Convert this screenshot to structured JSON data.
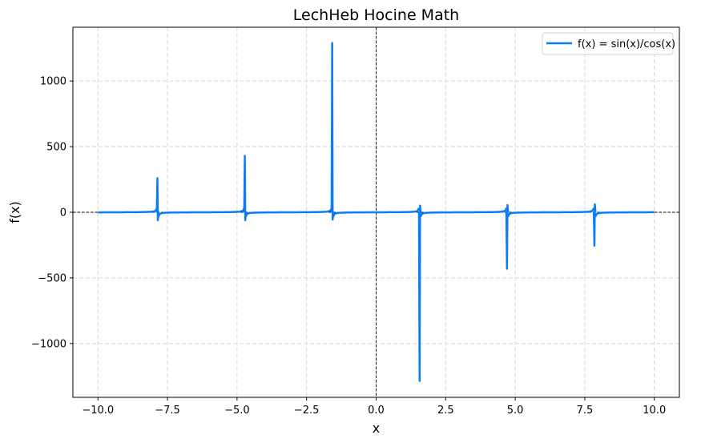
{
  "chart_data": {
    "type": "line",
    "title": "LechHeb Hocine Math",
    "xlabel": "x",
    "ylabel": "f(x)",
    "xlim": [
      -10.9,
      10.9
    ],
    "ylim": [
      -1410,
      1410
    ],
    "x_ticks": [
      -10.0,
      -7.5,
      -5.0,
      -2.5,
      0.0,
      2.5,
      5.0,
      7.5,
      10.0
    ],
    "x_tick_labels": [
      "−10.0",
      "−7.5",
      "−5.0",
      "−2.5",
      "0.0",
      "2.5",
      "5.0",
      "7.5",
      "10.0"
    ],
    "y_ticks": [
      -1000,
      -500,
      0,
      500,
      1000
    ],
    "y_tick_labels": [
      "−1000",
      "−500",
      "0",
      "500",
      "1000"
    ],
    "grid": true,
    "legend_position": "top-right",
    "reference_lines": {
      "x0": true,
      "y0": true,
      "style": "dashed",
      "color": "#000000"
    },
    "series": [
      {
        "name": "f(x) = sin(x)/cos(x)",
        "function": "tan(x)",
        "x_range": [
          -10,
          10
        ],
        "color": "#0a7cf5",
        "spikes": [
          {
            "x": -7.854,
            "peak": 260,
            "trough": -60
          },
          {
            "x": -4.712,
            "peak": 430,
            "trough": -60
          },
          {
            "x": -1.571,
            "peak": 1290,
            "trough": -55
          },
          {
            "x": 1.571,
            "peak": 50,
            "trough": -1285
          },
          {
            "x": 4.712,
            "peak": 55,
            "trough": -430
          },
          {
            "x": 7.854,
            "peak": 60,
            "trough": -255
          }
        ]
      }
    ]
  }
}
